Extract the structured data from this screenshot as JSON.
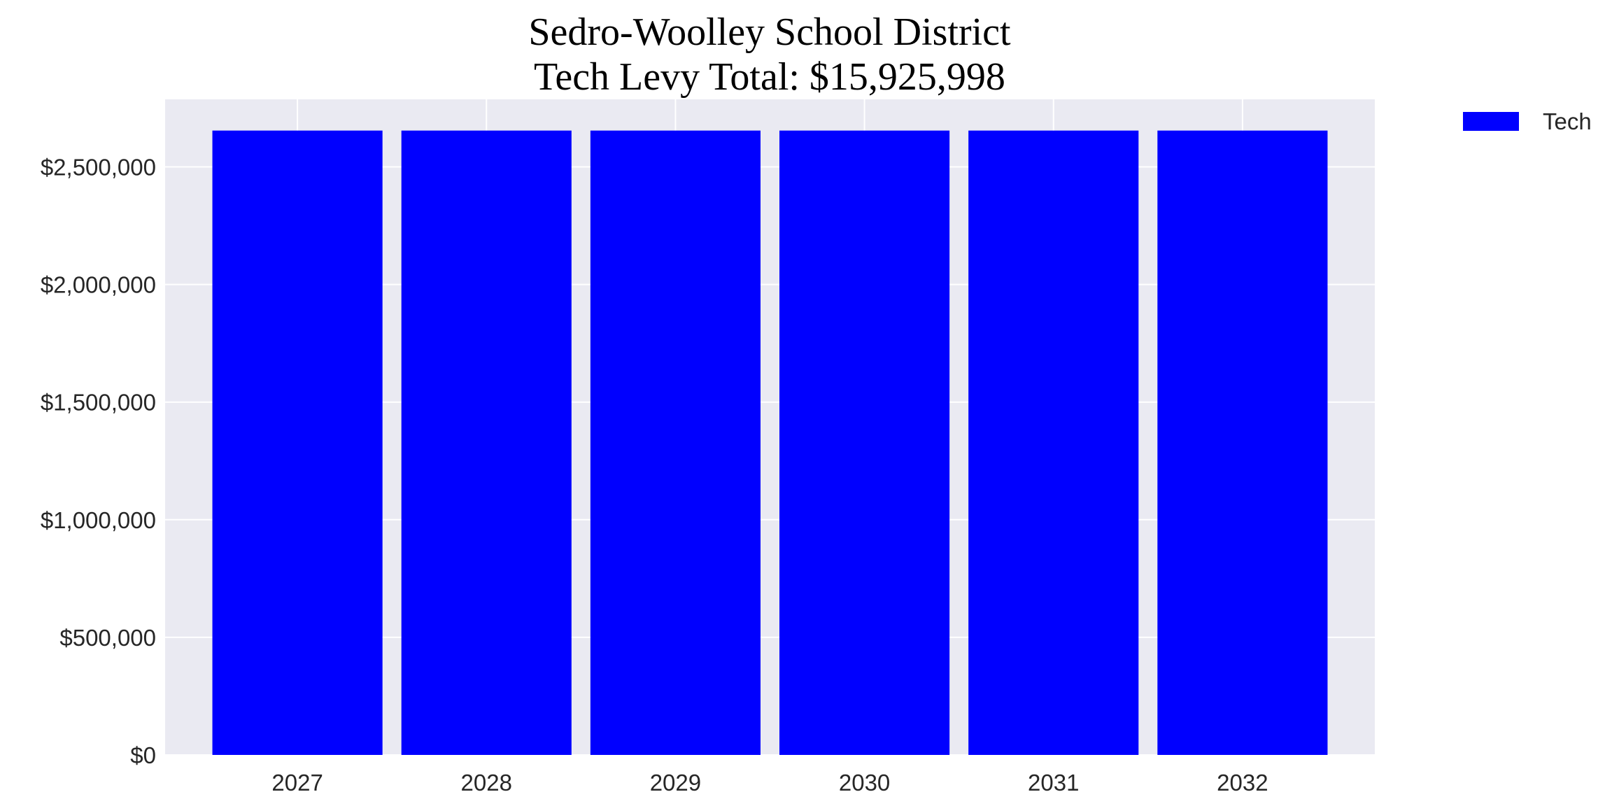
{
  "chart_data": {
    "type": "bar",
    "title_lines": [
      "Sedro-Woolley School District",
      "Tech Levy Total: $15,925,998"
    ],
    "xlabel": "",
    "ylabel": "",
    "categories": [
      "2027",
      "2028",
      "2029",
      "2030",
      "2031",
      "2032"
    ],
    "series": [
      {
        "name": "Tech",
        "values": [
          2654333,
          2654333,
          2654333,
          2654333,
          2654333,
          2654333
        ],
        "color": "#0000ff"
      }
    ],
    "ylim": [
      0,
      2787050
    ],
    "yticks": [
      0,
      500000,
      1000000,
      1500000,
      2000000,
      2500000
    ],
    "ytick_labels": [
      "$0",
      "$500,000",
      "$1,000,000",
      "$1,500,000",
      "$2,000,000",
      "$2,500,000"
    ],
    "grid": true,
    "legend_placement": "outside-top-right",
    "colors": {
      "plot_background": "#eaeaf2",
      "grid": "#ffffff"
    }
  }
}
